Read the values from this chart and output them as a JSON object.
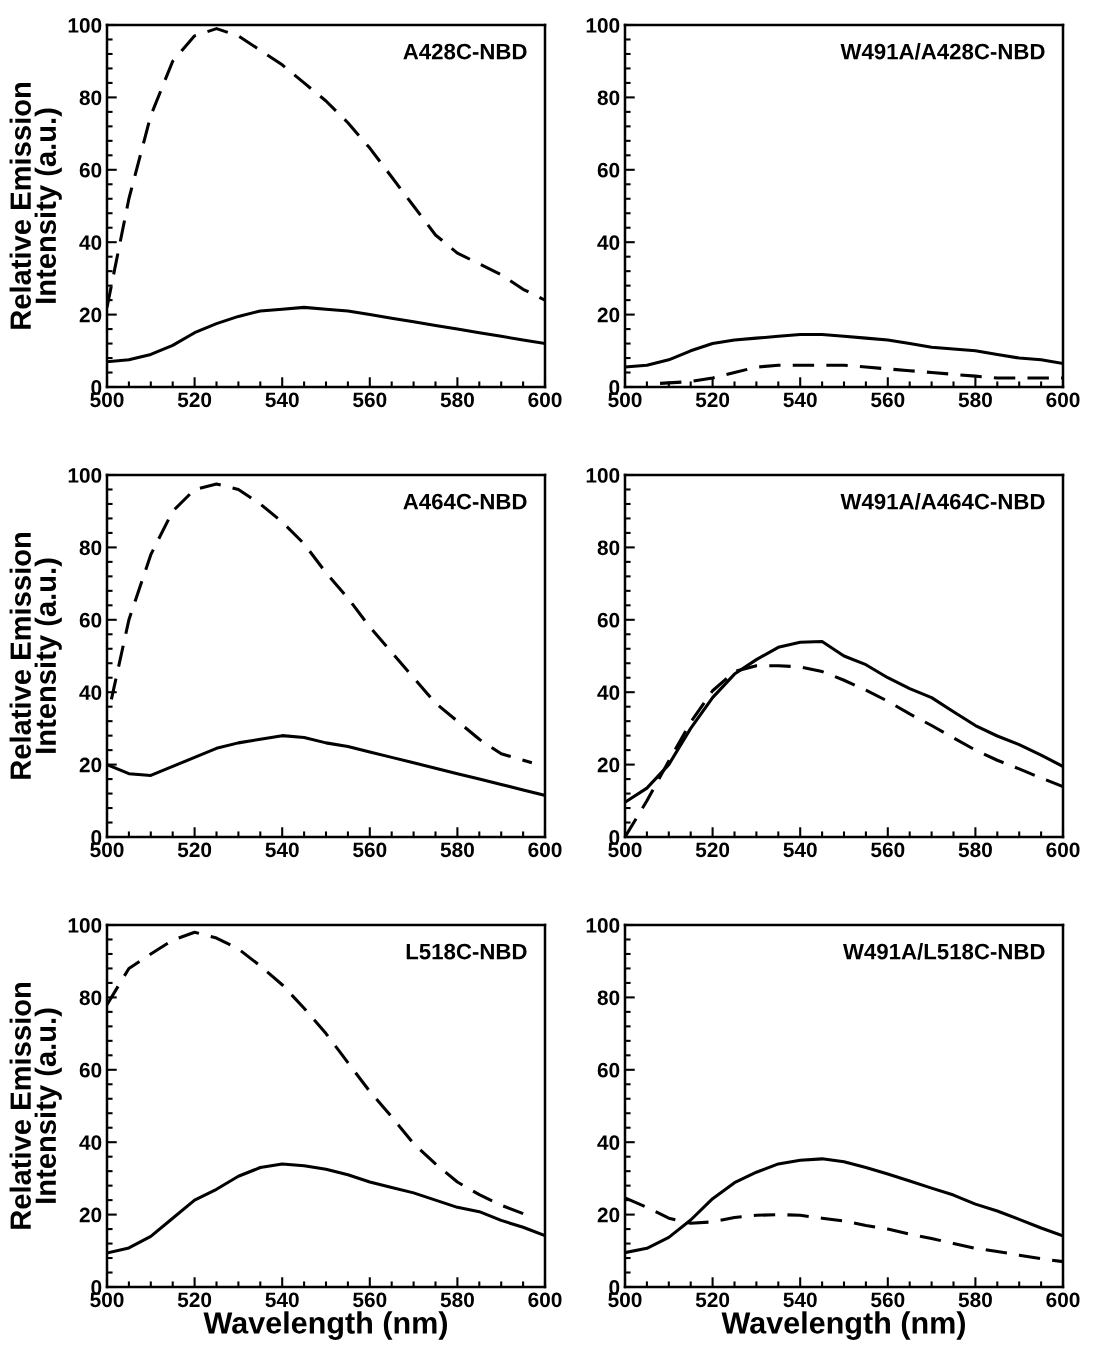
{
  "chart_data": [
    {
      "type": "line",
      "title": "A428C-NBD",
      "ylabel": "Relative Emission\nIntensity (a.u.)",
      "xlim": [
        500,
        600
      ],
      "ylim": [
        0,
        100
      ],
      "xticks": [
        500,
        520,
        540,
        560,
        580,
        600
      ],
      "yticks": [
        0,
        20,
        40,
        60,
        80,
        100
      ],
      "grid": false,
      "x": [
        500,
        505,
        510,
        515,
        520,
        525,
        530,
        535,
        540,
        545,
        550,
        555,
        560,
        565,
        570,
        575,
        580,
        585,
        590,
        595,
        600
      ],
      "series": [
        {
          "color": "#000000",
          "line_style": "dashed",
          "values": [
            22,
            52,
            75,
            90,
            97,
            99,
            97,
            93,
            89,
            84,
            79,
            73,
            66,
            58,
            50,
            42,
            37,
            34,
            31,
            27,
            24
          ]
        },
        {
          "color": "#000000",
          "line_style": "solid",
          "values": [
            7,
            7.5,
            9,
            11.5,
            15,
            17.5,
            19.5,
            21,
            21.5,
            22,
            21.5,
            21,
            20,
            19,
            18,
            17,
            16,
            15,
            14,
            13,
            12
          ]
        }
      ]
    },
    {
      "type": "line",
      "title": "W491A/A428C-NBD",
      "xlim": [
        500,
        600
      ],
      "ylim": [
        0,
        100
      ],
      "xticks": [
        500,
        520,
        540,
        560,
        580,
        600
      ],
      "yticks": [
        0,
        20,
        40,
        60,
        80,
        100
      ],
      "grid": false,
      "x": [
        500,
        505,
        510,
        515,
        520,
        525,
        530,
        535,
        540,
        545,
        550,
        555,
        560,
        565,
        570,
        575,
        580,
        585,
        590,
        595,
        600
      ],
      "series": [
        {
          "color": "#000000",
          "line_style": "solid",
          "values": [
            5.5,
            6,
            7.5,
            10,
            12,
            13,
            13.5,
            14,
            14.5,
            14.5,
            14,
            13.5,
            13,
            12,
            11,
            10.5,
            10,
            9,
            8,
            7.5,
            6.5
          ]
        },
        {
          "color": "#000000",
          "line_style": "dashed",
          "x": [
            508,
            515,
            520,
            525,
            530,
            535,
            540,
            545,
            550,
            555,
            560,
            565,
            570,
            575,
            580,
            585,
            590,
            595,
            600
          ],
          "values": [
            1,
            1.5,
            2.5,
            4,
            5.5,
            6,
            6,
            6,
            6,
            5.5,
            5,
            4.5,
            4,
            3.5,
            3,
            2.5,
            2.5,
            2.5,
            2.5
          ]
        }
      ]
    },
    {
      "type": "line",
      "title": "A464C-NBD",
      "ylabel": "Relative Emission\nIntensity (a.u.)",
      "xlim": [
        500,
        600
      ],
      "ylim": [
        0,
        100
      ],
      "xticks": [
        500,
        520,
        540,
        560,
        580,
        600
      ],
      "yticks": [
        0,
        20,
        40,
        60,
        80,
        100
      ],
      "grid": false,
      "x": [
        500,
        505,
        510,
        515,
        520,
        525,
        530,
        535,
        540,
        545,
        550,
        555,
        560,
        565,
        570,
        575,
        580,
        585,
        590,
        595,
        600
      ],
      "series": [
        {
          "color": "#000000",
          "line_style": "dashed",
          "x": [
            501,
            505,
            510,
            515,
            520,
            525,
            530,
            535,
            540,
            545,
            550,
            555,
            560,
            565,
            570,
            575,
            580,
            585,
            590,
            597
          ],
          "values": [
            38,
            60,
            78,
            90,
            96,
            97.5,
            96,
            92,
            87,
            81,
            73,
            66,
            58,
            51,
            44,
            37,
            32,
            27,
            23,
            20.5
          ]
        },
        {
          "color": "#000000",
          "line_style": "solid",
          "values": [
            20,
            17.5,
            17,
            19.5,
            22,
            24.5,
            26,
            27,
            28,
            27.5,
            26,
            25,
            23.5,
            22,
            20.5,
            19,
            17.5,
            16,
            14.5,
            13,
            11.5
          ]
        }
      ]
    },
    {
      "type": "line",
      "title": "W491A/A464C-NBD",
      "xlim": [
        500,
        600
      ],
      "ylim": [
        0,
        100
      ],
      "xticks": [
        500,
        520,
        540,
        560,
        580,
        600
      ],
      "yticks": [
        0,
        20,
        40,
        60,
        80,
        100
      ],
      "grid": false,
      "x": [
        500,
        505,
        510,
        515,
        520,
        525,
        530,
        535,
        540,
        545,
        550,
        555,
        560,
        565,
        570,
        575,
        580,
        585,
        590,
        595,
        600
      ],
      "series": [
        {
          "color": "#000000",
          "line_style": "solid",
          "values": [
            9.6,
            13.5,
            20,
            30,
            38.5,
            45,
            49,
            52.4,
            53.8,
            54,
            50,
            47.6,
            44,
            41,
            38.5,
            34.6,
            30.8,
            27.9,
            25.5,
            22.6,
            19.5
          ]
        },
        {
          "color": "#000000",
          "line_style": "dashed",
          "values": [
            0,
            10,
            21,
            31.7,
            40.4,
            45.7,
            47.3,
            47.3,
            47,
            45.7,
            43.3,
            40.6,
            37.5,
            34,
            30.8,
            27.4,
            24,
            21.2,
            18.8,
            16.3,
            13.9
          ]
        }
      ]
    },
    {
      "type": "line",
      "title": "L518C-NBD",
      "ylabel": "Relative Emission\nIntensity (a.u.)",
      "xlabel": "Wavelength (nm)",
      "xlim": [
        500,
        600
      ],
      "ylim": [
        0,
        100
      ],
      "xticks": [
        500,
        520,
        540,
        560,
        580,
        600
      ],
      "yticks": [
        0,
        20,
        40,
        60,
        80,
        100
      ],
      "grid": false,
      "x": [
        500,
        505,
        510,
        515,
        520,
        525,
        530,
        535,
        540,
        545,
        550,
        555,
        560,
        565,
        570,
        575,
        580,
        585,
        590,
        595,
        600
      ],
      "series": [
        {
          "color": "#000000",
          "line_style": "dashed",
          "x": [
            500,
            505,
            510,
            515,
            520,
            525,
            530,
            535,
            540,
            545,
            550,
            555,
            560,
            565,
            570,
            575,
            580,
            585,
            590,
            596
          ],
          "values": [
            78,
            88,
            92,
            95.8,
            98,
            96.4,
            93.4,
            88.7,
            83.5,
            77,
            70,
            62,
            54,
            47,
            39.6,
            34,
            29,
            25.5,
            22.6,
            19.8
          ]
        },
        {
          "color": "#000000",
          "line_style": "solid",
          "values": [
            9.4,
            10.8,
            14,
            19,
            24,
            27,
            30.6,
            33,
            34,
            33.5,
            32.5,
            31,
            29,
            27.5,
            26,
            24,
            22,
            20.8,
            18.4,
            16.5,
            14.2
          ]
        }
      ]
    },
    {
      "type": "line",
      "title": "W491A/L518C-NBD",
      "xlabel": "Wavelength (nm)",
      "xlim": [
        500,
        600
      ],
      "ylim": [
        0,
        100
      ],
      "xticks": [
        500,
        520,
        540,
        560,
        580,
        600
      ],
      "yticks": [
        0,
        20,
        40,
        60,
        80,
        100
      ],
      "grid": false,
      "x": [
        500,
        505,
        510,
        515,
        520,
        525,
        530,
        535,
        540,
        545,
        550,
        555,
        560,
        565,
        570,
        575,
        580,
        585,
        590,
        595,
        600
      ],
      "series": [
        {
          "color": "#000000",
          "line_style": "solid",
          "values": [
            9.5,
            10.7,
            13.7,
            18.5,
            24.4,
            28.8,
            31.7,
            34,
            35,
            35.4,
            34.6,
            33,
            31.2,
            29.3,
            27.3,
            25.4,
            22.9,
            21,
            18.7,
            16.3,
            14.1
          ]
        },
        {
          "color": "#000000",
          "line_style": "dashed",
          "values": [
            24.6,
            22,
            19,
            17.6,
            18,
            19.2,
            19.8,
            20,
            19.8,
            19,
            18.2,
            17,
            16,
            14.6,
            13.4,
            12,
            10.7,
            9.8,
            8.8,
            7.8,
            7
          ]
        }
      ]
    }
  ]
}
